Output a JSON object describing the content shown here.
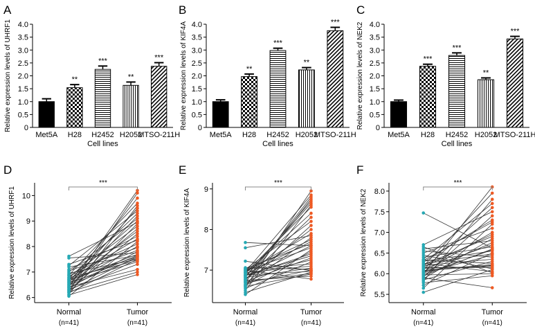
{
  "colors": {
    "black": "#000000",
    "normal_dot": "#26a9b4",
    "tumor_dot": "#ee5a24",
    "line": "#333333"
  },
  "chart_data": [
    {
      "panel": "A",
      "type": "bar",
      "ylabel": "Relative expression levels of UHRF1",
      "xlabel": "Cell lines",
      "ylim": [
        0,
        4.0
      ],
      "yticks": [
        "0",
        "0.5",
        "1.0",
        "1.5",
        "2.0",
        "2.5",
        "3.0",
        "3.5",
        "4.0"
      ],
      "categories": [
        "Met5A",
        "H28",
        "H2452",
        "H2052",
        "MTSO-211H"
      ],
      "patterns": [
        "solid",
        "checker",
        "hlines",
        "vlines",
        "diag"
      ],
      "values": [
        1.0,
        1.54,
        2.25,
        1.63,
        2.37
      ],
      "errors": [
        0.11,
        0.12,
        0.13,
        0.13,
        0.14
      ],
      "significance": [
        "",
        "**",
        "***",
        "**",
        "***"
      ]
    },
    {
      "panel": "B",
      "type": "bar",
      "ylabel": "Relative expression levels of KIF4A",
      "xlabel": "Cell lines",
      "ylim": [
        0,
        4.0
      ],
      "yticks": [
        "0",
        "0.5",
        "1.0",
        "1.5",
        "2.0",
        "2.5",
        "3.0",
        "3.5",
        "4.0"
      ],
      "categories": [
        "Met5A",
        "H28",
        "H2452",
        "H2052",
        "MTSO-211H"
      ],
      "patterns": [
        "solid",
        "checker",
        "hlines",
        "vlines",
        "diag"
      ],
      "values": [
        1.0,
        1.97,
        2.98,
        2.23,
        3.75
      ],
      "errors": [
        0.07,
        0.1,
        0.09,
        0.09,
        0.13
      ],
      "significance": [
        "",
        "**",
        "***",
        "**",
        "***"
      ]
    },
    {
      "panel": "C",
      "type": "bar",
      "ylabel": "Relative expression levels of NEK2",
      "xlabel": "Cell lines",
      "ylim": [
        0,
        4.0
      ],
      "yticks": [
        "0",
        "0.5",
        "1.0",
        "1.5",
        "2.0",
        "2.5",
        "3.0",
        "3.5",
        "4.0"
      ],
      "categories": [
        "Met5A",
        "H28",
        "H2452",
        "H2052",
        "MTSO-211H"
      ],
      "patterns": [
        "solid",
        "checker",
        "hlines",
        "vlines",
        "diag"
      ],
      "values": [
        1.0,
        2.37,
        2.79,
        1.85,
        3.43
      ],
      "errors": [
        0.06,
        0.08,
        0.1,
        0.07,
        0.1
      ],
      "significance": [
        "",
        "***",
        "***",
        "**",
        "***"
      ]
    },
    {
      "panel": "D",
      "type": "scatter",
      "ylabel": "Relative expression levels of UHRF1",
      "ylim": [
        5.8,
        10.5
      ],
      "yticks": [
        6,
        7,
        8,
        9,
        10
      ],
      "groups": [
        "Normal",
        "Tumor"
      ],
      "group_n": [
        "(n=41)",
        "(n=41)"
      ],
      "significance": "***",
      "normal": [
        6.05,
        6.1,
        6.12,
        6.18,
        6.2,
        6.22,
        6.25,
        6.28,
        6.3,
        6.32,
        6.35,
        6.38,
        6.4,
        6.42,
        6.45,
        6.48,
        6.5,
        6.52,
        6.55,
        6.58,
        6.6,
        6.62,
        6.65,
        6.68,
        6.7,
        6.72,
        6.75,
        6.78,
        6.8,
        6.85,
        6.88,
        6.9,
        6.95,
        7.0,
        7.05,
        7.1,
        7.2,
        7.25,
        7.3,
        7.55,
        7.62
      ],
      "tumor": [
        8.2,
        6.9,
        9.6,
        7.5,
        8.9,
        7.0,
        10.1,
        7.6,
        8.5,
        7.3,
        9.2,
        7.8,
        10.2,
        7.1,
        8.7,
        7.55,
        9.5,
        7.65,
        8.0,
        9.9,
        7.4,
        8.6,
        7.7,
        9.0,
        7.6,
        8.3,
        9.3,
        7.45,
        8.8,
        7.85,
        9.7,
        8.1,
        7.5,
        9.1,
        7.95,
        8.4,
        7.65,
        9.4,
        8.25,
        7.75,
        8.95
      ]
    },
    {
      "panel": "E",
      "type": "scatter",
      "ylabel": "Relative expression levels of KIF4A",
      "ylim": [
        6.2,
        9.15
      ],
      "yticks": [
        7,
        8,
        9
      ],
      "groups": [
        "Normal",
        "Tumor"
      ],
      "group_n": [
        "(n=41)",
        "(n=41)"
      ],
      "significance": "***",
      "normal": [
        6.4,
        6.45,
        6.5,
        6.55,
        6.58,
        6.6,
        6.63,
        6.65,
        6.68,
        6.7,
        6.72,
        6.75,
        6.77,
        6.8,
        6.82,
        6.84,
        6.86,
        6.88,
        6.9,
        6.92,
        6.94,
        6.96,
        6.98,
        7.0,
        7.02,
        7.04,
        7.06,
        6.78,
        6.88,
        6.93,
        6.99,
        6.71,
        6.83,
        6.62,
        6.95,
        7.03,
        6.74,
        6.87,
        7.22,
        7.55,
        7.68
      ],
      "tumor": [
        7.5,
        6.95,
        8.6,
        7.2,
        8.95,
        6.9,
        7.8,
        8.1,
        7.0,
        8.75,
        7.3,
        6.85,
        8.3,
        7.6,
        7.05,
        8.7,
        7.4,
        6.97,
        7.7,
        8.4,
        7.1,
        8.85,
        7.55,
        6.78,
        8.2,
        7.65,
        7.02,
        8.0,
        7.35,
        8.55,
        7.75,
        6.92,
        8.65,
        7.45,
        7.9,
        7.15,
        8.8,
        7.25,
        6.99,
        7.85,
        7.6
      ]
    },
    {
      "panel": "F",
      "type": "scatter",
      "ylabel": "Relative expression levels of NEK2",
      "ylim": [
        5.3,
        8.2
      ],
      "yticks": [
        "5.5",
        "6.0",
        "6.5",
        "7.0",
        "7.5",
        "8.0"
      ],
      "groups": [
        "Normal",
        "Tumor"
      ],
      "group_n": [
        "(n=41)",
        "(n=41)"
      ],
      "significance": "***",
      "normal": [
        5.55,
        5.65,
        5.72,
        5.78,
        5.82,
        5.85,
        5.88,
        5.9,
        5.92,
        5.95,
        5.97,
        6.0,
        6.02,
        6.05,
        6.07,
        6.1,
        6.12,
        6.15,
        6.18,
        6.2,
        6.22,
        6.25,
        6.28,
        6.3,
        6.33,
        6.35,
        6.4,
        6.45,
        6.5,
        6.55,
        6.6,
        6.65,
        6.7,
        5.98,
        6.08,
        6.16,
        6.24,
        6.32,
        6.03,
        6.13,
        7.47
      ],
      "tumor": [
        6.1,
        7.2,
        6.5,
        5.95,
        7.8,
        6.3,
        6.85,
        5.66,
        7.4,
        6.6,
        6.0,
        8.1,
        6.45,
        7.0,
        6.2,
        7.6,
        6.7,
        6.15,
        7.95,
        6.35,
        6.9,
        6.05,
        7.3,
        6.55,
        6.25,
        7.7,
        6.65,
        6.12,
        7.1,
        6.4,
        6.8,
        6.02,
        7.5,
        6.58,
        6.22,
        6.95,
        6.48,
        7.25,
        6.75,
        6.18,
        6.62
      ]
    }
  ]
}
